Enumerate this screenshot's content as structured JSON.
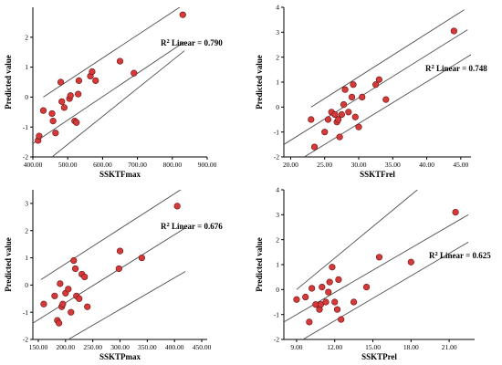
{
  "chart_data": [
    {
      "type": "scatter",
      "xlabel": "SSKTFmax",
      "ylabel": "Predicted value",
      "xlim": [
        400,
        900
      ],
      "ylim": [
        -2,
        3
      ],
      "x_ticks": [
        400,
        500,
        600,
        700,
        800,
        900
      ],
      "x_tick_labels": [
        "400.00",
        "500.00",
        "600.00",
        "700.00",
        "800.00",
        "900.00"
      ],
      "y_ticks": [
        -2,
        -1,
        0,
        1,
        2
      ],
      "y_tick_labels": [
        "-2",
        "-1",
        "0",
        "1",
        "2"
      ],
      "annotation": "Linear = 0.790",
      "fit_lines": [
        {
          "x": [
            430,
            860
          ],
          "y": [
            0.0,
            3.3
          ]
        },
        {
          "x": [
            400,
            835
          ],
          "y": [
            -1.55,
            1.85
          ]
        },
        {
          "x": [
            455,
            835
          ],
          "y": [
            -2.0,
            1.55
          ]
        }
      ],
      "points": [
        {
          "x": 415,
          "y": -1.45
        },
        {
          "x": 418,
          "y": -1.3
        },
        {
          "x": 430,
          "y": -0.45
        },
        {
          "x": 455,
          "y": -0.55
        },
        {
          "x": 458,
          "y": -0.8
        },
        {
          "x": 465,
          "y": -1.2
        },
        {
          "x": 480,
          "y": 0.5
        },
        {
          "x": 483,
          "y": -0.15
        },
        {
          "x": 490,
          "y": -0.35
        },
        {
          "x": 505,
          "y": -0.05
        },
        {
          "x": 508,
          "y": 0.05
        },
        {
          "x": 520,
          "y": -0.8
        },
        {
          "x": 525,
          "y": -0.85
        },
        {
          "x": 530,
          "y": 0.1
        },
        {
          "x": 532,
          "y": 0.55
        },
        {
          "x": 565,
          "y": 0.7
        },
        {
          "x": 570,
          "y": 0.85
        },
        {
          "x": 580,
          "y": 0.55
        },
        {
          "x": 650,
          "y": 1.2
        },
        {
          "x": 690,
          "y": 0.8
        },
        {
          "x": 830,
          "y": 2.75
        }
      ]
    },
    {
      "type": "scatter",
      "xlabel": "SSKTFrel",
      "ylabel": "Predicted value",
      "xlim": [
        19,
        46.5
      ],
      "ylim": [
        -2,
        4
      ],
      "x_ticks": [
        20,
        25,
        30,
        35,
        40,
        45
      ],
      "x_tick_labels": [
        "20.00",
        "25.00",
        "30.00",
        "35.00",
        "40.00",
        "45.00"
      ],
      "y_ticks": [
        -2,
        -1,
        0,
        1,
        2,
        3,
        4
      ],
      "y_tick_labels": [
        "-2",
        "-1",
        "0",
        "1",
        "2",
        "3",
        "4"
      ],
      "annotation": "Linear = 0.748",
      "fit_lines": [
        {
          "x": [
            23,
            45.5
          ],
          "y": [
            0.0,
            3.9
          ]
        },
        {
          "x": [
            19,
            46
          ],
          "y": [
            -1.5,
            3.1
          ]
        },
        {
          "x": [
            22,
            46.5
          ],
          "y": [
            -2.0,
            2.1
          ]
        }
      ],
      "points": [
        {
          "x": 23,
          "y": -0.5
        },
        {
          "x": 23.5,
          "y": -1.6
        },
        {
          "x": 25,
          "y": -1.0
        },
        {
          "x": 25.5,
          "y": -0.5
        },
        {
          "x": 26,
          "y": -0.2
        },
        {
          "x": 26.5,
          "y": -0.3
        },
        {
          "x": 26.8,
          "y": -0.6
        },
        {
          "x": 27,
          "y": -0.5
        },
        {
          "x": 27.2,
          "y": -1.2
        },
        {
          "x": 27.5,
          "y": -0.3
        },
        {
          "x": 27.8,
          "y": 0.1
        },
        {
          "x": 28,
          "y": 0.7
        },
        {
          "x": 28.5,
          "y": -0.2
        },
        {
          "x": 29,
          "y": 0.4
        },
        {
          "x": 29.2,
          "y": 0.9
        },
        {
          "x": 29.5,
          "y": -0.4
        },
        {
          "x": 30,
          "y": -0.8
        },
        {
          "x": 30.5,
          "y": 0.4
        },
        {
          "x": 32.5,
          "y": 0.9
        },
        {
          "x": 33,
          "y": 1.1
        },
        {
          "x": 34,
          "y": 0.3
        },
        {
          "x": 44,
          "y": 3.05
        }
      ]
    },
    {
      "type": "scatter",
      "xlabel": "SSKTPmax",
      "ylabel": "Predicted value",
      "xlim": [
        140,
        460
      ],
      "ylim": [
        -2,
        3.5
      ],
      "x_ticks": [
        150,
        200,
        250,
        300,
        350,
        400,
        450
      ],
      "x_tick_labels": [
        "150.00",
        "200.00",
        "250.00",
        "300.00",
        "350.00",
        "400.00",
        "450.00"
      ],
      "y_ticks": [
        -2,
        -1,
        0,
        1,
        2,
        3
      ],
      "y_tick_labels": [
        "-2",
        "-1",
        "0",
        "1",
        "2",
        "3"
      ],
      "annotation": "Linear = 0.676",
      "fit_lines": [
        {
          "x": [
            155,
            415
          ],
          "y": [
            0.2,
            3.55
          ]
        },
        {
          "x": [
            140,
            420
          ],
          "y": [
            -1.4,
            2.1
          ]
        },
        {
          "x": [
            205,
            420
          ],
          "y": [
            -2.0,
            0.5
          ]
        }
      ],
      "points": [
        {
          "x": 160,
          "y": -0.7
        },
        {
          "x": 180,
          "y": -0.4
        },
        {
          "x": 185,
          "y": -1.3
        },
        {
          "x": 188,
          "y": -1.4
        },
        {
          "x": 190,
          "y": 0.05
        },
        {
          "x": 193,
          "y": -0.8
        },
        {
          "x": 195,
          "y": -0.7
        },
        {
          "x": 200,
          "y": -0.3
        },
        {
          "x": 205,
          "y": -0.15
        },
        {
          "x": 210,
          "y": -1.0
        },
        {
          "x": 215,
          "y": 0.9
        },
        {
          "x": 218,
          "y": 0.6
        },
        {
          "x": 220,
          "y": -0.4
        },
        {
          "x": 225,
          "y": -0.5
        },
        {
          "x": 230,
          "y": 0.4
        },
        {
          "x": 235,
          "y": 0.3
        },
        {
          "x": 240,
          "y": -0.8
        },
        {
          "x": 298,
          "y": 0.6
        },
        {
          "x": 300,
          "y": 1.25
        },
        {
          "x": 340,
          "y": 1.0
        },
        {
          "x": 405,
          "y": 2.9
        }
      ]
    },
    {
      "type": "scatter",
      "xlabel": "SSKTPrel",
      "ylabel": "Predicted value",
      "xlim": [
        8,
        23
      ],
      "ylim": [
        -2,
        4
      ],
      "x_ticks": [
        9,
        12,
        15,
        18,
        21
      ],
      "x_tick_labels": [
        "9.00",
        "12.00",
        "15.00",
        "18.00",
        "21.00"
      ],
      "y_ticks": [
        -2,
        -1,
        0,
        1,
        2,
        3,
        4
      ],
      "y_tick_labels": [
        "-2",
        "-1",
        "0",
        "1",
        "2",
        "3",
        "4"
      ],
      "annotation": "Linear = 0.625",
      "fit_lines": [
        {
          "x": [
            9,
            18.5
          ],
          "y": [
            0.0,
            4.0
          ]
        },
        {
          "x": [
            8,
            22.5
          ],
          "y": [
            -1.3,
            3.0
          ]
        },
        {
          "x": [
            9.5,
            22.5
          ],
          "y": [
            -2.0,
            1.9
          ]
        }
      ],
      "points": [
        {
          "x": 9,
          "y": -0.4
        },
        {
          "x": 9.7,
          "y": -0.3
        },
        {
          "x": 10.2,
          "y": 0.05
        },
        {
          "x": 10.5,
          "y": -0.6
        },
        {
          "x": 10.8,
          "y": -0.8
        },
        {
          "x": 10.9,
          "y": -0.6
        },
        {
          "x": 11.0,
          "y": 0.1
        },
        {
          "x": 11.3,
          "y": -0.5
        },
        {
          "x": 11.5,
          "y": -0.1
        },
        {
          "x": 11.6,
          "y": 0.3
        },
        {
          "x": 11.8,
          "y": 0.9
        },
        {
          "x": 12.0,
          "y": -0.5
        },
        {
          "x": 12.2,
          "y": -0.8
        },
        {
          "x": 12.3,
          "y": 0.4
        },
        {
          "x": 12.5,
          "y": -1.2
        },
        {
          "x": 10.0,
          "y": -1.3
        },
        {
          "x": 13.5,
          "y": -0.5
        },
        {
          "x": 14.5,
          "y": 0.1
        },
        {
          "x": 15.5,
          "y": 1.3
        },
        {
          "x": 18.0,
          "y": 1.1
        },
        {
          "x": 21.5,
          "y": 3.1
        }
      ]
    }
  ]
}
